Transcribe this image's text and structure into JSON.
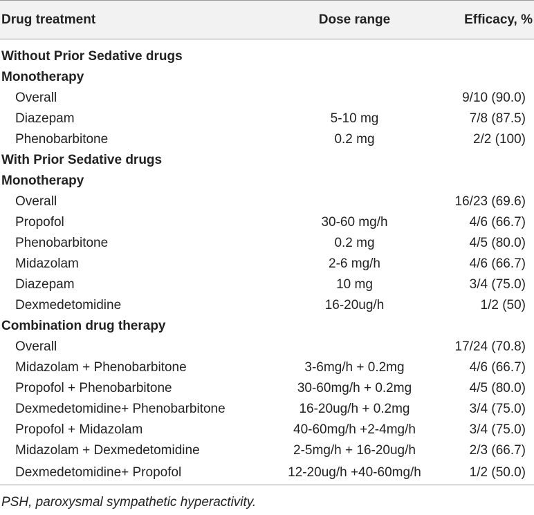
{
  "header": {
    "col1": "Drug treatment",
    "col2": "Dose range",
    "col3": "Efficacy, %"
  },
  "rows": [
    {
      "type": "section",
      "label": "Without Prior Sedative drugs"
    },
    {
      "type": "section",
      "label": "Monotherapy"
    },
    {
      "type": "item",
      "label": "Overall",
      "dose": "",
      "efficacy": "9/10 (90.0)"
    },
    {
      "type": "item",
      "label": "Diazepam",
      "dose": "5-10 mg",
      "efficacy": "7/8 (87.5)"
    },
    {
      "type": "item",
      "label": "Phenobarbitone",
      "dose": "0.2 mg",
      "efficacy": "2/2 (100)"
    },
    {
      "type": "section",
      "label": "With Prior Sedative drugs"
    },
    {
      "type": "section",
      "label": "Monotherapy"
    },
    {
      "type": "item",
      "label": "Overall",
      "dose": "",
      "efficacy": "16/23 (69.6)"
    },
    {
      "type": "item",
      "label": "Propofol",
      "dose": "30-60 mg/h",
      "efficacy": "4/6 (66.7)"
    },
    {
      "type": "item",
      "label": "Phenobarbitone",
      "dose": "0.2 mg",
      "efficacy": "4/5 (80.0)"
    },
    {
      "type": "item",
      "label": "Midazolam",
      "dose": "2-6 mg/h",
      "efficacy": "4/6 (66.7)"
    },
    {
      "type": "item",
      "label": "Diazepam",
      "dose": "10 mg",
      "efficacy": "3/4 (75.0)"
    },
    {
      "type": "item",
      "label": "Dexmedetomidine",
      "dose": "16-20ug/h",
      "efficacy": "1/2 (50)"
    },
    {
      "type": "section",
      "label": "Combination drug therapy"
    },
    {
      "type": "item",
      "label": "Overall",
      "dose": "",
      "efficacy": "17/24 (70.8)"
    },
    {
      "type": "item",
      "label": "Midazolam + Phenobarbitone",
      "dose": "3-6mg/h + 0.2mg",
      "efficacy": "4/6 (66.7)"
    },
    {
      "type": "item",
      "label": "Propofol + Phenobarbitone",
      "dose": "30-60mg/h + 0.2mg",
      "efficacy": "4/5 (80.0)"
    },
    {
      "type": "item",
      "label": "Dexmedetomidine+ Phenobarbitone",
      "dose": "16-20ug/h + 0.2mg",
      "efficacy": "3/4 (75.0)"
    },
    {
      "type": "item",
      "label": "Propofol + Midazolam",
      "dose": "40-60mg/h +2-4mg/h",
      "efficacy": "3/4 (75.0)"
    },
    {
      "type": "item",
      "label": "Midazolam + Dexmedetomidine",
      "dose": "2-5mg/h + 16-20ug/h",
      "efficacy": "2/3 (66.7)"
    },
    {
      "type": "item",
      "label": "Dexmedetomidine+ Propofol",
      "dose": "12-20ug/h +40-60mg/h",
      "efficacy": "1/2 (50.0)"
    }
  ],
  "footnote": "PSH, paroxysmal sympathetic hyperactivity."
}
